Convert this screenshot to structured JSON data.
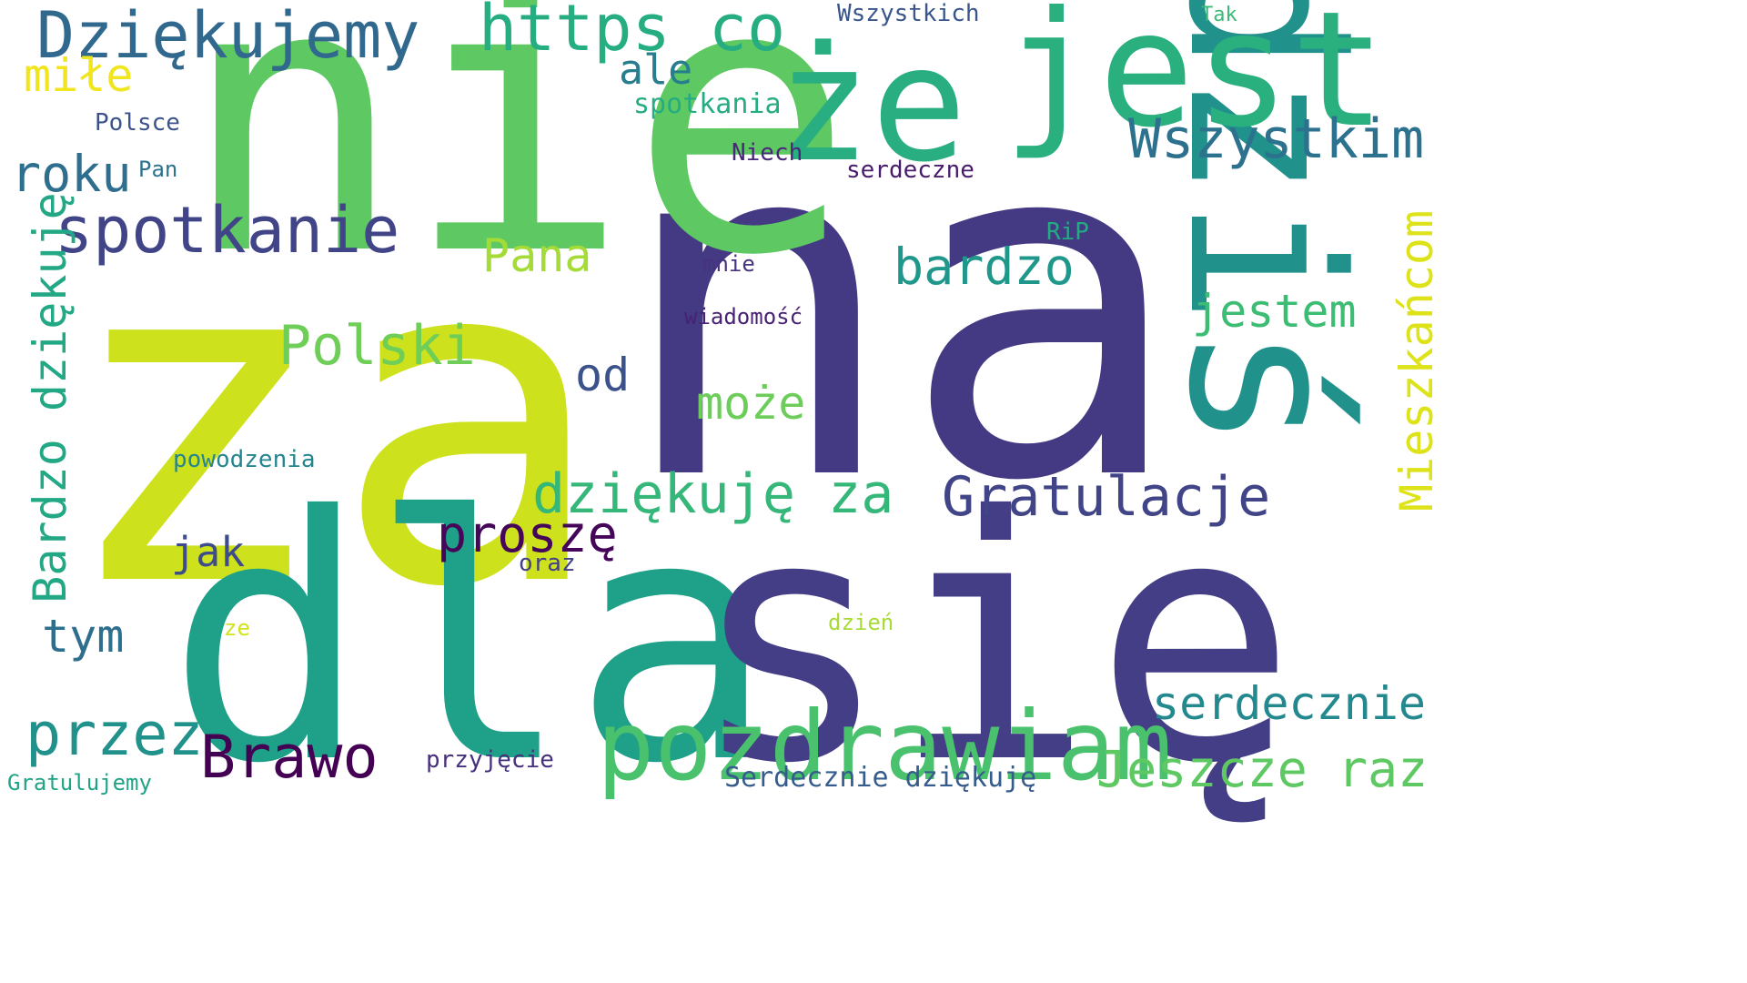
{
  "words": [
    {
      "text": "na",
      "color": "#443983"
    },
    {
      "text": "za",
      "color": "#cde11d"
    },
    {
      "text": "nie",
      "color": "#5ec962"
    },
    {
      "text": "dla",
      "color": "#1fa088"
    },
    {
      "text": "się",
      "color": "#433e85"
    },
    {
      "text": "dziś",
      "color": "#21918c"
    },
    {
      "text": "że",
      "color": "#28ae80"
    },
    {
      "text": "jest",
      "color": "#2ab07f"
    },
    {
      "text": "pozdrawiam",
      "color": "#4ac16d"
    },
    {
      "text": "Dziękujemy",
      "color": "#31688e"
    },
    {
      "text": "https co",
      "color": "#26ad81"
    },
    {
      "text": "Wszystkim",
      "color": "#2c728e"
    },
    {
      "text": "spotkanie",
      "color": "#414487"
    },
    {
      "text": "Bardzo dziękuję",
      "color": "#22a884"
    },
    {
      "text": "dziękuję za",
      "color": "#35b779"
    },
    {
      "text": "Gratulacje",
      "color": "#414487"
    },
    {
      "text": "Polski",
      "color": "#6ece58"
    },
    {
      "text": "Mieszkańcom",
      "color": "#dde318"
    },
    {
      "text": "roku",
      "color": "#2e6e8e"
    },
    {
      "text": "bardzo",
      "color": "#1f988b"
    },
    {
      "text": "Brawo",
      "color": "#440154"
    },
    {
      "text": "przez",
      "color": "#21918c"
    },
    {
      "text": "proszę",
      "color": "#450559"
    },
    {
      "text": "serdecznie",
      "color": "#23898e"
    },
    {
      "text": "Jeszcze raz",
      "color": "#5ec962"
    },
    {
      "text": "jestem",
      "color": "#3dbc74"
    },
    {
      "text": "Pana",
      "color": "#a5db36"
    },
    {
      "text": "może",
      "color": "#6ccd5a"
    },
    {
      "text": "miłe",
      "color": "#f1e51d"
    },
    {
      "text": "tym",
      "color": "#2e6f8e"
    },
    {
      "text": "ale",
      "color": "#287d8e"
    },
    {
      "text": "od",
      "color": "#3b528b"
    },
    {
      "text": "jak",
      "color": "#3e4c8a"
    },
    {
      "text": "Serdecznie dziękuję",
      "color": "#365c8d"
    },
    {
      "text": "spotkania",
      "color": "#25ac82"
    },
    {
      "text": "Wszystkich",
      "color": "#39568c"
    },
    {
      "text": "Polsce",
      "color": "#3b528b"
    },
    {
      "text": "Niech",
      "color": "#482878"
    },
    {
      "text": "serdeczne",
      "color": "#481b6d"
    },
    {
      "text": "Pan",
      "color": "#2c728e"
    },
    {
      "text": "RiP",
      "color": "#25ab82"
    },
    {
      "text": "mnie",
      "color": "#46327e"
    },
    {
      "text": "wiadomość",
      "color": "#482173"
    },
    {
      "text": "powodzenia",
      "color": "#25858e"
    },
    {
      "text": "oraz",
      "color": "#424086"
    },
    {
      "text": "przyjęcie",
      "color": "#46307e"
    },
    {
      "text": "ze",
      "color": "#d2e21b"
    },
    {
      "text": "dzień",
      "color": "#a8db34"
    },
    {
      "text": "Gratulujemy",
      "color": "#20a386"
    },
    {
      "text": "Tak",
      "color": "#3aba76"
    }
  ]
}
